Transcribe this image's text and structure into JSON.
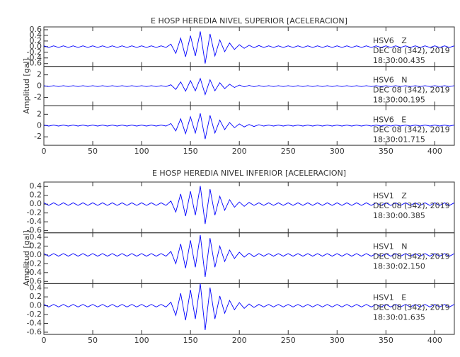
{
  "chart_data": [
    {
      "type": "line",
      "title": "E HOSP HEREDIA NIVEL SUPERIOR [ACELERACION]",
      "ylabel": "Amplitud [gal]",
      "xlim": [
        0,
        420
      ],
      "xticks": [
        0,
        50,
        100,
        150,
        200,
        250,
        300,
        350,
        400
      ],
      "x": [
        0,
        5,
        10,
        15,
        20,
        25,
        30,
        35,
        40,
        45,
        50,
        55,
        60,
        65,
        70,
        75,
        80,
        85,
        90,
        95,
        100,
        105,
        110,
        115,
        120,
        125,
        130,
        135,
        140,
        145,
        150,
        155,
        160,
        165,
        170,
        175,
        180,
        185,
        190,
        195,
        200,
        205,
        210,
        215,
        220,
        225,
        230,
        235,
        240,
        245,
        250,
        255,
        260,
        265,
        270,
        275,
        280,
        285,
        290,
        295,
        300,
        305,
        310,
        315,
        320,
        325,
        330,
        335,
        340,
        345,
        350,
        355,
        360,
        365,
        370,
        375,
        380,
        385,
        390,
        395,
        400,
        405,
        410,
        415,
        420
      ],
      "series": [
        {
          "name": "HSV6   Z",
          "date": "DEC 08 (342), 2019",
          "time": "18:30:00.435",
          "color": "#0000ff",
          "ylim": [
            -0.7,
            0.7
          ],
          "yticks": [
            -0.6,
            -0.4,
            -0.2,
            {
              "value": 0,
              "label": "0.0"
            },
            0.2,
            0.4,
            0.6
          ],
          "values": [
            0.03,
            -0.03,
            0.03,
            -0.03,
            0.03,
            -0.03,
            0.03,
            -0.03,
            0.03,
            -0.03,
            0.03,
            -0.03,
            0.03,
            -0.03,
            0.03,
            -0.03,
            0.03,
            -0.03,
            0.03,
            -0.03,
            0.03,
            -0.03,
            0.03,
            -0.03,
            0.03,
            -0.03,
            0.09,
            -0.24,
            0.3,
            -0.36,
            0.39,
            -0.33,
            0.54,
            -0.6,
            0.45,
            -0.33,
            0.24,
            -0.18,
            0.13,
            -0.1,
            0.07,
            -0.06,
            0.05,
            -0.04,
            0.04,
            -0.03,
            0.03,
            -0.03,
            0.03,
            -0.03,
            0.03,
            -0.03,
            0.03,
            -0.03,
            0.03,
            -0.03,
            0.03,
            -0.03,
            0.03,
            -0.03,
            0.03,
            -0.03,
            0.03,
            -0.03,
            0.03,
            -0.03,
            0.03,
            -0.03,
            0.03,
            -0.03,
            0.03,
            -0.03,
            0.03,
            -0.03,
            0.03,
            -0.03,
            0.03,
            -0.03,
            0.03,
            -0.03,
            0.03,
            -0.03,
            0.03,
            -0.03,
            0.03
          ]
        },
        {
          "name": "HSV6   N",
          "date": "DEC 08 (342), 2019",
          "time": "18:30:00.195",
          "color": "#0000ff",
          "ylim": [
            -3.5,
            3.5
          ],
          "yticks": [
            -2,
            0,
            2
          ],
          "values": [
            0.08,
            -0.08,
            0.08,
            -0.08,
            0.08,
            -0.08,
            0.08,
            -0.08,
            0.08,
            -0.08,
            0.08,
            -0.08,
            0.08,
            -0.08,
            0.08,
            -0.08,
            0.08,
            -0.08,
            0.08,
            -0.08,
            0.08,
            -0.08,
            0.08,
            -0.08,
            0.08,
            -0.08,
            0.23,
            -0.6,
            0.75,
            -0.9,
            0.98,
            -0.83,
            1.35,
            -1.5,
            1.13,
            -0.83,
            0.6,
            -0.45,
            0.33,
            -0.24,
            0.18,
            -0.15,
            0.12,
            -0.11,
            0.09,
            -0.08,
            0.08,
            -0.08,
            0.08,
            -0.08,
            0.08,
            -0.08,
            0.08,
            -0.08,
            0.08,
            -0.08,
            0.08,
            -0.08,
            0.08,
            -0.08,
            0.08,
            -0.08,
            0.08,
            -0.08,
            0.08,
            -0.08,
            0.08,
            -0.08,
            0.08,
            -0.08,
            0.08,
            -0.08,
            0.08,
            -0.08,
            0.08,
            -0.08,
            0.08,
            -0.08,
            0.08,
            -0.08,
            0.08,
            -0.08,
            0.08,
            -0.08,
            0.08
          ]
        },
        {
          "name": "HSV6   E",
          "date": "DEC 08 (342), 2019",
          "time": "18:30:01.715",
          "color": "#0000ff",
          "ylim": [
            -3.5,
            3.5
          ],
          "yticks": [
            -2,
            0,
            2
          ],
          "values": [
            0.1,
            -0.1,
            0.1,
            -0.1,
            0.1,
            -0.1,
            0.1,
            -0.1,
            0.1,
            -0.1,
            0.1,
            -0.1,
            0.1,
            -0.1,
            0.1,
            -0.1,
            0.1,
            -0.1,
            0.1,
            -0.1,
            0.1,
            -0.1,
            0.1,
            -0.1,
            0.1,
            -0.1,
            0.36,
            -0.96,
            1.2,
            -1.44,
            1.56,
            -1.32,
            2.16,
            -2.4,
            1.8,
            -1.32,
            0.96,
            -0.72,
            0.53,
            -0.38,
            0.29,
            -0.24,
            0.19,
            -0.17,
            0.14,
            -0.1,
            0.1,
            -0.1,
            0.1,
            -0.1,
            0.1,
            -0.1,
            0.1,
            -0.1,
            0.1,
            -0.1,
            0.1,
            -0.1,
            0.1,
            -0.1,
            0.1,
            -0.1,
            0.1,
            -0.1,
            0.1,
            -0.1,
            0.1,
            -0.1,
            0.1,
            -0.1,
            0.1,
            -0.1,
            0.1,
            -0.1,
            0.1,
            -0.1,
            0.1,
            -0.1,
            0.1,
            -0.1,
            0.1,
            -0.1,
            0.1,
            -0.1,
            0.1
          ]
        }
      ]
    },
    {
      "type": "line",
      "title": "E HOSP HEREDIA NIVEL INFERIOR [ACELERACION]",
      "ylabel": "Amplitud [gal]",
      "xlim": [
        0,
        420
      ],
      "xticks": [
        0,
        50,
        100,
        150,
        200,
        250,
        300,
        350,
        400
      ],
      "x": [
        0,
        5,
        10,
        15,
        20,
        25,
        30,
        35,
        40,
        45,
        50,
        55,
        60,
        65,
        70,
        75,
        80,
        85,
        90,
        95,
        100,
        105,
        110,
        115,
        120,
        125,
        130,
        135,
        140,
        145,
        150,
        155,
        160,
        165,
        170,
        175,
        180,
        185,
        190,
        195,
        200,
        205,
        210,
        215,
        220,
        225,
        230,
        235,
        240,
        245,
        250,
        255,
        260,
        265,
        270,
        275,
        280,
        285,
        290,
        295,
        300,
        305,
        310,
        315,
        320,
        325,
        330,
        335,
        340,
        345,
        350,
        355,
        360,
        365,
        370,
        375,
        380,
        385,
        390,
        395,
        400,
        405,
        410,
        415,
        420
      ],
      "series": [
        {
          "name": "HSV1   Z",
          "date": "DEC 08 (342), 2019",
          "time": "18:30:00.385",
          "color": "#0000ff",
          "ylim": [
            -0.65,
            0.5
          ],
          "yticks": [
            -0.6,
            -0.4,
            -0.2,
            {
              "value": 0,
              "label": "0.0"
            },
            0.2,
            0.4
          ],
          "values": [
            0.03,
            -0.03,
            0.03,
            -0.03,
            0.03,
            -0.03,
            0.03,
            -0.03,
            0.03,
            -0.03,
            0.03,
            -0.03,
            0.03,
            -0.03,
            0.03,
            -0.03,
            0.03,
            -0.03,
            0.03,
            -0.03,
            0.03,
            -0.03,
            0.03,
            -0.03,
            0.03,
            -0.03,
            0.07,
            -0.18,
            0.23,
            -0.27,
            0.29,
            -0.25,
            0.41,
            -0.45,
            0.34,
            -0.25,
            0.18,
            -0.14,
            0.1,
            -0.07,
            0.05,
            -0.05,
            0.04,
            -0.03,
            0.03,
            -0.03,
            0.03,
            -0.03,
            0.03,
            -0.03,
            0.03,
            -0.03,
            0.03,
            -0.03,
            0.03,
            -0.03,
            0.03,
            -0.03,
            0.03,
            -0.03,
            0.03,
            -0.03,
            0.03,
            -0.03,
            0.03,
            -0.03,
            0.03,
            -0.03,
            0.03,
            -0.03,
            0.03,
            -0.03,
            0.03,
            -0.03,
            0.03,
            -0.03,
            0.03,
            -0.03,
            0.03,
            -0.03,
            0.03,
            -0.03,
            0.03,
            -0.03,
            0.03
          ]
        },
        {
          "name": "HSV1   N",
          "date": "DEC 08 (342), 2019",
          "time": "18:30:02.150",
          "color": "#0000ff",
          "ylim": [
            -0.65,
            0.5
          ],
          "yticks": [
            -0.6,
            -0.4,
            -0.2,
            {
              "value": 0,
              "label": "0.0"
            },
            0.2,
            0.4
          ],
          "values": [
            0.03,
            -0.03,
            0.03,
            -0.03,
            0.03,
            -0.03,
            0.03,
            -0.03,
            0.03,
            -0.03,
            0.03,
            -0.03,
            0.03,
            -0.03,
            0.03,
            -0.03,
            0.03,
            -0.03,
            0.03,
            -0.03,
            0.03,
            -0.03,
            0.03,
            -0.03,
            0.03,
            -0.03,
            0.08,
            -0.2,
            0.25,
            -0.3,
            0.33,
            -0.28,
            0.45,
            -0.5,
            0.38,
            -0.28,
            0.2,
            -0.15,
            0.11,
            -0.08,
            0.06,
            -0.05,
            0.04,
            -0.04,
            0.03,
            -0.03,
            0.03,
            -0.03,
            0.03,
            -0.03,
            0.03,
            -0.03,
            0.03,
            -0.03,
            0.03,
            -0.03,
            0.03,
            -0.03,
            0.03,
            -0.03,
            0.03,
            -0.03,
            0.03,
            -0.03,
            0.03,
            -0.03,
            0.03,
            -0.03,
            0.03,
            -0.03,
            0.03,
            -0.03,
            0.03,
            -0.03,
            0.03,
            -0.03,
            0.03,
            -0.03,
            0.03,
            -0.03,
            0.03,
            -0.03,
            0.03,
            -0.03,
            0.03
          ]
        },
        {
          "name": "HSV1   E",
          "date": "DEC 08 (342), 2019",
          "time": "18:30:01.635",
          "color": "#0000ff",
          "ylim": [
            -0.65,
            0.5
          ],
          "yticks": [
            -0.6,
            -0.4,
            -0.2,
            {
              "value": 0,
              "label": "0.0"
            },
            0.2,
            0.4
          ],
          "values": [
            0.03,
            -0.03,
            0.03,
            -0.03,
            0.03,
            -0.03,
            0.03,
            -0.03,
            0.03,
            -0.03,
            0.03,
            -0.03,
            0.03,
            -0.03,
            0.03,
            -0.03,
            0.03,
            -0.03,
            0.03,
            -0.03,
            0.03,
            -0.03,
            0.03,
            -0.03,
            0.03,
            -0.03,
            0.08,
            -0.22,
            0.28,
            -0.33,
            0.36,
            -0.3,
            0.5,
            -0.55,
            0.41,
            -0.3,
            0.22,
            -0.17,
            0.12,
            -0.09,
            0.07,
            -0.06,
            0.04,
            -0.04,
            0.03,
            -0.03,
            0.03,
            -0.03,
            0.03,
            -0.03,
            0.03,
            -0.03,
            0.03,
            -0.03,
            0.03,
            -0.03,
            0.03,
            -0.03,
            0.03,
            -0.03,
            0.03,
            -0.03,
            0.03,
            -0.03,
            0.03,
            -0.03,
            0.03,
            -0.03,
            0.03,
            -0.03,
            0.03,
            -0.03,
            0.03,
            -0.03,
            0.03,
            -0.03,
            0.03,
            -0.03,
            0.03,
            -0.03,
            0.03,
            -0.03,
            0.03,
            -0.03,
            0.03
          ]
        }
      ]
    }
  ]
}
